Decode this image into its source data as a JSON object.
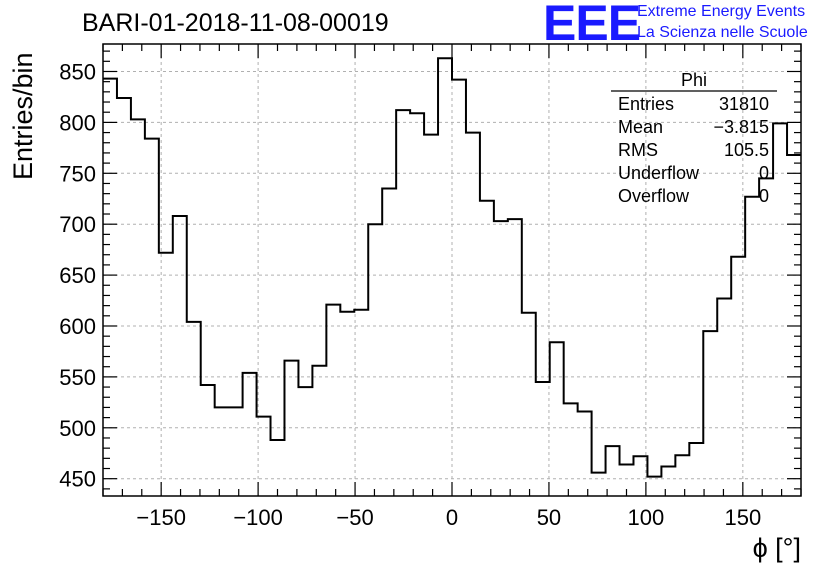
{
  "header": {
    "title": "BARI-01-2018-11-08-00019",
    "logo_text": "EEE",
    "banner_line1": "Extreme Energy Events",
    "banner_line2": "La Scienza nelle Scuole",
    "logo_color": "#1a1aff"
  },
  "stats": {
    "name": "Phi",
    "rows": [
      {
        "label": "Entries",
        "value": "31810"
      },
      {
        "label": "Mean",
        "value": "−3.815"
      },
      {
        "label": "RMS",
        "value": "105.5"
      },
      {
        "label": "Underflow",
        "value": "0"
      },
      {
        "label": "Overflow",
        "value": "0"
      }
    ]
  },
  "chart_data": {
    "type": "bar",
    "style": "step histogram",
    "xlabel": "ϕ [°]",
    "ylabel": "Entries/bin",
    "xlim": [
      -180,
      180
    ],
    "ylim": [
      433,
      877
    ],
    "bin_width": 7.2,
    "xticks": [
      -150,
      -100,
      -50,
      0,
      50,
      100,
      150
    ],
    "xtick_labels": [
      "−150",
      "−100",
      "−50",
      "0",
      "50",
      "100",
      "150"
    ],
    "yticks": [
      450,
      500,
      550,
      600,
      650,
      700,
      750,
      800,
      850
    ],
    "grid": true,
    "values": [
      843,
      824,
      803,
      784,
      672,
      708,
      604,
      542,
      520,
      520,
      554,
      511,
      488,
      566,
      540,
      561,
      621,
      614,
      616,
      700,
      735,
      812,
      809,
      788,
      863,
      842,
      790,
      723,
      703,
      705,
      613,
      545,
      584,
      524,
      516,
      456,
      482,
      464,
      472,
      452,
      462,
      473,
      485,
      595,
      627,
      668,
      727,
      745,
      799,
      768
    ]
  }
}
